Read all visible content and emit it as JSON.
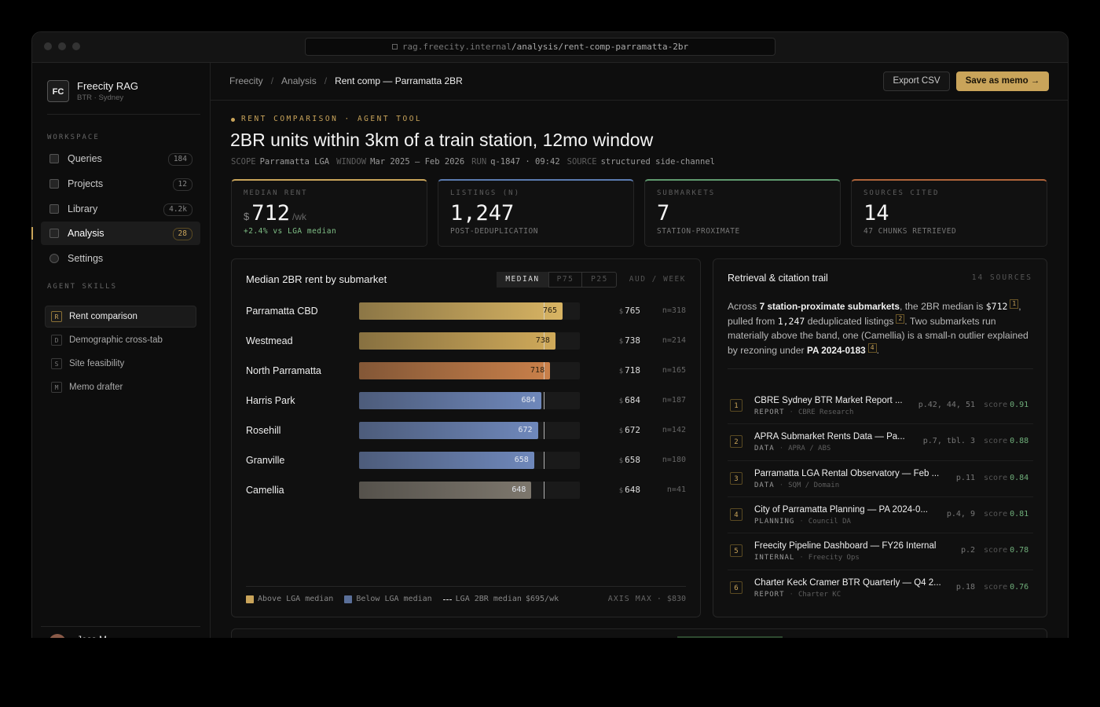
{
  "browser": {
    "url_host": "rag.freecity.internal",
    "url_path": "/analysis/rent-comp-parramatta-2br"
  },
  "sidebar": {
    "brand": {
      "initials": "FC",
      "name": "Freecity RAG",
      "subtitle": "BTR · Sydney"
    },
    "workspace_label": "WORKSPACE",
    "nav": [
      {
        "label": "Queries",
        "count": 184
      },
      {
        "label": "Projects",
        "count": 12
      },
      {
        "label": "Library",
        "count": "4.2k"
      },
      {
        "label": "Analysis",
        "count": 28,
        "active": true
      },
      {
        "label": "Settings"
      }
    ],
    "skills_label": "AGENT SKILLS",
    "skills": [
      {
        "key": "R",
        "label": "Rent comparison",
        "active": true
      },
      {
        "key": "D",
        "label": "Demographic cross-tab"
      },
      {
        "key": "S",
        "label": "Site feasibility"
      },
      {
        "key": "M",
        "label": "Memo drafter"
      }
    ],
    "user": {
      "name": "Jess M."
    }
  },
  "breadcrumb": [
    "Freecity",
    "Analysis",
    "Rent comp — Parramatta 2BR"
  ],
  "breadcrumb_separator": "/",
  "actions": [
    "Export CSV",
    "Save as memo →"
  ],
  "header": {
    "eyebrow": "RENT COMPARISON · AGENT TOOL",
    "title": "2BR units within 3km of a train station, 12mo window",
    "meta": [
      {
        "key": "SCOPE",
        "value": "Parramatta LGA"
      },
      {
        "key": "WINDOW",
        "value": "Mar 2025 — Feb 2026"
      },
      {
        "key": "RUN",
        "value": "q-1847 · 09:42"
      },
      {
        "key": "SOURCE",
        "value": "structured side-channel"
      }
    ]
  },
  "kpis": [
    {
      "label": "MEDIAN RENT",
      "prefix": "$",
      "value": 712,
      "unit": "/wk",
      "note": "+2.4% vs LGA median",
      "color": "#c9a45a",
      "note_color": "#7fbf86"
    },
    {
      "label": "LISTINGS (N)",
      "value": "1,247",
      "note": "POST-DEDUPLICATION",
      "color": "#5b7bb0"
    },
    {
      "label": "SUBMARKETS",
      "value": 7,
      "note": "STATION-PROXIMATE",
      "color": "#5f9a6e"
    },
    {
      "label": "SOURCES CITED",
      "value": 14,
      "note": "47 CHUNKS RETRIEVED",
      "color": "#b0643a"
    }
  ],
  "rent_chart": {
    "title": "Median 2BR rent by submarket",
    "tabs": [
      "MEDIAN",
      "P75",
      "P25"
    ],
    "active_tab": 0,
    "units": "AUD / WEEK",
    "currency": "$",
    "categories": [
      "Parramatta CBD",
      "Westmead",
      "North Parramatta",
      "Harris Park",
      "Rosehill",
      "Granville",
      "Camellia"
    ],
    "values": [
      765,
      738,
      718,
      684,
      672,
      658,
      648
    ],
    "colors": [
      "#d8b463",
      "#d0aa5a",
      "#c9804a",
      "#6f88bb",
      "#6f88bb",
      "#6f88bb",
      "#7d776d"
    ],
    "n_labels": [
      "n=318",
      "n=214",
      "n=165",
      "n=187",
      "n=142",
      "n=180",
      "n=41"
    ],
    "xlim": [
      0,
      830
    ],
    "median": 695,
    "legend": {
      "above": "Above LGA median",
      "below": "Below LGA median",
      "median_label": "LGA 2BR median",
      "median_unit": "/wk",
      "axis_max_label": "AXIS MAX",
      "separator": "·"
    },
    "above_color": "#c9a45a",
    "below_color": "#5a6f99"
  },
  "citations": {
    "title": "Retrieval & citation trail",
    "count_label": "14 SOURCES",
    "separator": "·",
    "score_label": "score",
    "summary": [
      {
        "text": "Across "
      },
      {
        "text": "7 station-proximate submarkets",
        "style": "bold"
      },
      {
        "text": ", the 2BR median is "
      },
      {
        "text": "$712",
        "style": "mono"
      },
      {
        "text": "1",
        "style": "cite"
      },
      {
        "text": ", pulled from "
      },
      {
        "text": "1,247",
        "style": "mono"
      },
      {
        "text": " deduplicated listings"
      },
      {
        "text": "2",
        "style": "cite"
      },
      {
        "text": ". Two submarkets run materially above the band, one (Camellia) is a small-n outlier explained by rezoning under "
      },
      {
        "text": "PA 2024-0183",
        "style": "bold"
      },
      {
        "text": "4",
        "style": "cite"
      },
      {
        "text": "."
      }
    ],
    "sources": [
      {
        "n": 1,
        "title": "CBRE Sydney BTR Market Report ...",
        "type": "REPORT",
        "org": "CBRE Research",
        "pages": "p.42, 44, 51",
        "score": 0.91
      },
      {
        "n": 2,
        "title": "APRA Submarket Rents Data — Pa...",
        "type": "DATA",
        "org": "APRA / ABS",
        "pages": "p.7, tbl. 3",
        "score": 0.88
      },
      {
        "n": 3,
        "title": "Parramatta LGA Rental Observatory — Feb ...",
        "type": "DATA",
        "org": "SQM / Domain",
        "pages": "p.11",
        "score": 0.84
      },
      {
        "n": 4,
        "title": "City of Parramatta Planning — PA 2024-0...",
        "type": "PLANNING",
        "org": "Council DA",
        "pages": "p.4, 9",
        "score": 0.81
      },
      {
        "n": 5,
        "title": "Freecity Pipeline Dashboard — FY26 Internal",
        "type": "INTERNAL",
        "org": "Freecity Ops",
        "pages": "p.2",
        "score": 0.78
      },
      {
        "n": 6,
        "title": "Charter Keck Cramer BTR Quarterly — Q4 2...",
        "type": "REPORT",
        "org": "Charter KC",
        "pages": "p.18",
        "score": 0.76
      }
    ]
  }
}
